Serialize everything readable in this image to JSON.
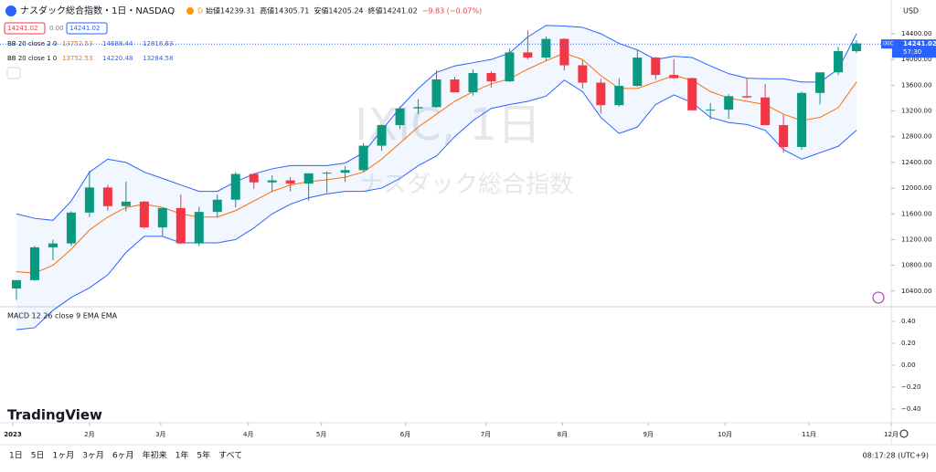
{
  "header": {
    "symbol": "ナスダック総合指数・1日・NASDAQ",
    "interval_badge": "D",
    "ohlc": [
      "始値14239.31",
      "高値14305.71",
      "安値14205.24",
      "終値14241.02",
      "−9.83 (−0.07%)"
    ],
    "price_boxes": [
      "14241.02",
      "0.00",
      "14241.02"
    ],
    "bb": [
      {
        "label": "BB 20 close 2 0",
        "values": [
          "13752.53",
          "14688.44",
          "12816.63"
        ]
      },
      {
        "label": "BB 20 close 1 0",
        "values": [
          "13752.53",
          "14220.48",
          "13284.58"
        ]
      }
    ],
    "macd": "MACD 12 26 close 9 EMA EMA",
    "currency": "USD",
    "logo": "TradingView"
  },
  "toolbar": {
    "ranges": [
      "1日",
      "5日",
      "1ヶ月",
      "3ヶ月",
      "6ヶ月",
      "年初来",
      "1年",
      "5年",
      "すべて"
    ],
    "clock": "08:17:28 (UTC+9)"
  },
  "chart_data": {
    "type": "candlestick",
    "watermark": [
      "IXIC, 1日",
      "ナスダック総合指数"
    ],
    "categories": [
      null,
      null,
      null,
      null,
      null,
      null,
      null,
      null,
      null,
      null,
      null,
      null,
      null,
      null,
      null,
      null,
      null,
      null,
      null,
      null,
      null,
      null,
      null,
      null,
      null,
      null,
      null,
      null,
      null,
      null,
      null,
      null,
      null,
      null,
      null,
      null,
      null,
      null,
      null,
      null,
      null,
      null,
      null,
      null,
      null,
      null,
      null
    ],
    "open": [
      10440,
      10570,
      11080,
      11140,
      11620,
      12010,
      11720,
      11790,
      11390,
      11690,
      11140,
      11630,
      11820,
      12220,
      12090,
      12120,
      12070,
      12230,
      12240,
      12280,
      12660,
      12980,
      13240,
      13260,
      13690,
      13490,
      13790,
      13660,
      14110,
      14030,
      14320,
      13910,
      13640,
      13290,
      13590,
      14030,
      13760,
      13710,
      13210,
      13220,
      13430,
      13410,
      12980,
      12640,
      13480,
      13800,
      14130
    ],
    "high": [
      10570,
      11100,
      11200,
      11640,
      12270,
      12050,
      12100,
      11800,
      11690,
      11900,
      11710,
      11900,
      12250,
      12230,
      12200,
      12170,
      12230,
      12260,
      12340,
      12700,
      12990,
      13270,
      13380,
      13830,
      13730,
      13850,
      13820,
      14170,
      14450,
      14360,
      14330,
      13990,
      13700,
      13710,
      14150,
      14040,
      14000,
      13720,
      13320,
      13460,
      13700,
      13620,
      13140,
      13500,
      13800,
      14200,
      14300
    ],
    "low": [
      10260,
      10560,
      10880,
      11100,
      11550,
      11650,
      11640,
      11370,
      11260,
      11130,
      11100,
      11540,
      11700,
      11990,
      11940,
      11950,
      11800,
      11930,
      12100,
      12250,
      12580,
      12920,
      13150,
      13250,
      13490,
      13440,
      13560,
      13650,
      14000,
      13980,
      13830,
      13550,
      13160,
      13270,
      13580,
      13690,
      13700,
      13210,
      13070,
      13080,
      13400,
      12980,
      12550,
      12600,
      13300,
      13760,
      14100
    ],
    "close": [
      10570,
      11080,
      11140,
      11620,
      12010,
      11720,
      11790,
      11390,
      11690,
      11140,
      11630,
      11820,
      12220,
      12090,
      12120,
      12070,
      12230,
      12240,
      12280,
      12660,
      12980,
      13240,
      13260,
      13690,
      13490,
      13790,
      13660,
      14110,
      14030,
      14320,
      13910,
      13640,
      13290,
      13590,
      14030,
      13760,
      13710,
      13210,
      13220,
      13430,
      13410,
      12980,
      12640,
      13480,
      13800,
      14130,
      14250
    ],
    "up_color": "#089981",
    "down_color": "#f23645",
    "bands": {
      "upper": [
        11600,
        11530,
        11500,
        11800,
        12250,
        12450,
        12400,
        12250,
        12150,
        12050,
        11950,
        11950,
        12100,
        12220,
        12300,
        12350,
        12350,
        12350,
        12390,
        12550,
        12900,
        13250,
        13550,
        13800,
        13900,
        13950,
        14000,
        14100,
        14350,
        14530,
        14520,
        14500,
        14400,
        14250,
        14150,
        14000,
        14050,
        14030,
        13900,
        13780,
        13710,
        13700,
        13700,
        13650,
        13650,
        13850,
        14400
      ],
      "middle": [
        10700,
        10680,
        10800,
        11050,
        11350,
        11550,
        11700,
        11750,
        11700,
        11600,
        11550,
        11550,
        11650,
        11800,
        11950,
        12050,
        12100,
        12130,
        12170,
        12250,
        12450,
        12700,
        12950,
        13150,
        13350,
        13500,
        13620,
        13700,
        13850,
        13980,
        14100,
        14000,
        13750,
        13550,
        13550,
        13650,
        13750,
        13680,
        13500,
        13400,
        13350,
        13300,
        13150,
        13050,
        13100,
        13250,
        13650
      ],
      "lower": [
        9800,
        9830,
        10100,
        10300,
        10450,
        10650,
        11000,
        11250,
        11250,
        11150,
        11150,
        11150,
        11200,
        11380,
        11600,
        11750,
        11850,
        11910,
        11950,
        11950,
        12000,
        12150,
        12350,
        12500,
        12800,
        13050,
        13240,
        13300,
        13350,
        13430,
        13680,
        13500,
        13100,
        12850,
        12950,
        13300,
        13450,
        13330,
        13100,
        13020,
        12990,
        12900,
        12600,
        12450,
        12550,
        12650,
        12900
      ],
      "band_color": "#2962ff",
      "middle_color": "#ff6d00"
    },
    "last_price": {
      "value": 14241.02,
      "label": "14241.02"
    },
    "last_symbol": "IXIC",
    "countdown": "57:30",
    "ylim": [
      10170,
      14925
    ],
    "yticks": [
      {
        "value": 10400,
        "label": "10400.00"
      },
      {
        "value": 10800,
        "label": "10800.00"
      },
      {
        "value": 11200,
        "label": "11200.00"
      },
      {
        "value": 11600,
        "label": "11600.00"
      },
      {
        "value": 12000,
        "label": "12000.00"
      },
      {
        "value": 12400,
        "label": "12400.00"
      },
      {
        "value": 12800,
        "label": "12800.00"
      },
      {
        "value": 13200,
        "label": "13200.00"
      },
      {
        "value": 13600,
        "label": "13600.00"
      },
      {
        "value": 14000,
        "label": "14000.00"
      },
      {
        "value": 14400,
        "label": "14400.00"
      }
    ],
    "xlim": [
      -0.9,
      47.9
    ],
    "xticks": [
      {
        "value": -0.2,
        "label": "2023"
      },
      {
        "value": 4.0,
        "label": "2月"
      },
      {
        "value": 7.9,
        "label": "3月"
      },
      {
        "value": 12.7,
        "label": "4月"
      },
      {
        "value": 16.7,
        "label": "5月"
      },
      {
        "value": 21.3,
        "label": "6月"
      },
      {
        "value": 25.7,
        "label": "7月"
      },
      {
        "value": 29.9,
        "label": "8月"
      },
      {
        "value": 34.6,
        "label": "9月"
      },
      {
        "value": 38.8,
        "label": "10月"
      },
      {
        "value": 43.4,
        "label": "11月"
      },
      {
        "value": 47.9,
        "label": "12月"
      }
    ],
    "macd_ylim": [
      -0.5,
      0.5
    ],
    "macd_yticks": [
      {
        "value": 0.4,
        "label": "0.40"
      },
      {
        "value": 0.2,
        "label": "0.20"
      },
      {
        "value": 0,
        "label": "0.00"
      },
      {
        "value": -0.2,
        "label": "−0.20"
      },
      {
        "value": -0.4,
        "label": "−0.40"
      }
    ]
  }
}
